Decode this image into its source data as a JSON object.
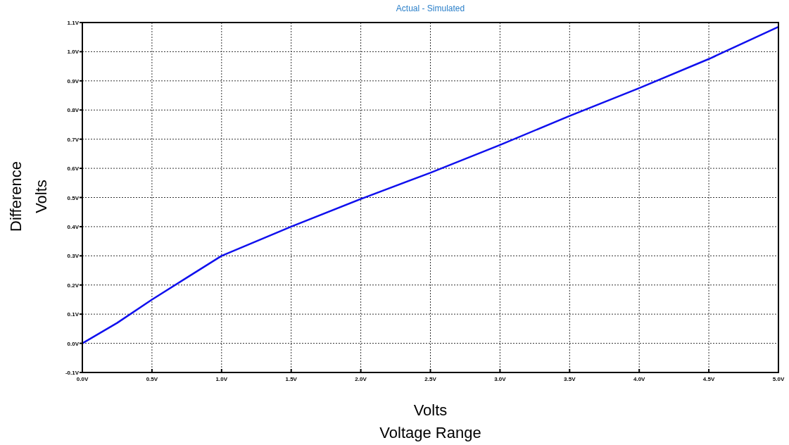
{
  "chart_data": {
    "type": "line",
    "title": "Actual - Simulated",
    "xlabel": "Volts\nVoltage Range",
    "ylabel": "Difference\nVolts",
    "x": [
      0,
      0.25,
      0.5,
      0.75,
      1.0,
      1.5,
      2.0,
      2.5,
      3.0,
      3.5,
      4.0,
      4.5,
      5.0
    ],
    "series": [
      {
        "color": "#1010ee",
        "values": [
          0,
          0.07,
          0.15,
          0.225,
          0.3,
          0.4,
          0.495,
          0.585,
          0.68,
          0.78,
          0.875,
          0.975,
          1.085
        ]
      }
    ],
    "xlim": [
      0,
      5
    ],
    "ylim": [
      -0.1,
      1.1
    ],
    "xticks": [
      {
        "value": 0,
        "label": "0.0V"
      },
      {
        "value": 0.5,
        "label": "0.5V"
      },
      {
        "value": 1,
        "label": "1.0V"
      },
      {
        "value": 1.5,
        "label": "1.5V"
      },
      {
        "value": 2,
        "label": "2.0V"
      },
      {
        "value": 2.5,
        "label": "2.5V"
      },
      {
        "value": 3,
        "label": "3.0V"
      },
      {
        "value": 3.5,
        "label": "3.5V"
      },
      {
        "value": 4,
        "label": "4.0V"
      },
      {
        "value": 4.5,
        "label": "4.5V"
      },
      {
        "value": 5,
        "label": "5.0V"
      }
    ],
    "yticks": [
      {
        "value": -0.1,
        "label": "-0.1V"
      },
      {
        "value": 0,
        "label": "0.0V"
      },
      {
        "value": 0.1,
        "label": "0.1V"
      },
      {
        "value": 0.2,
        "label": "0.2V"
      },
      {
        "value": 0.3,
        "label": "0.3V"
      },
      {
        "value": 0.4,
        "label": "0.4V"
      },
      {
        "value": 0.5,
        "label": "0.5V"
      },
      {
        "value": 0.6,
        "label": "0.6V"
      },
      {
        "value": 0.7,
        "label": "0.7V"
      },
      {
        "value": 0.8,
        "label": "0.8V"
      },
      {
        "value": 0.9,
        "label": "0.9V"
      },
      {
        "value": 1.0,
        "label": "1.0V"
      },
      {
        "value": 1.1,
        "label": "1.1V"
      }
    ],
    "grid": true,
    "marker": "none",
    "line_style": "solid"
  }
}
